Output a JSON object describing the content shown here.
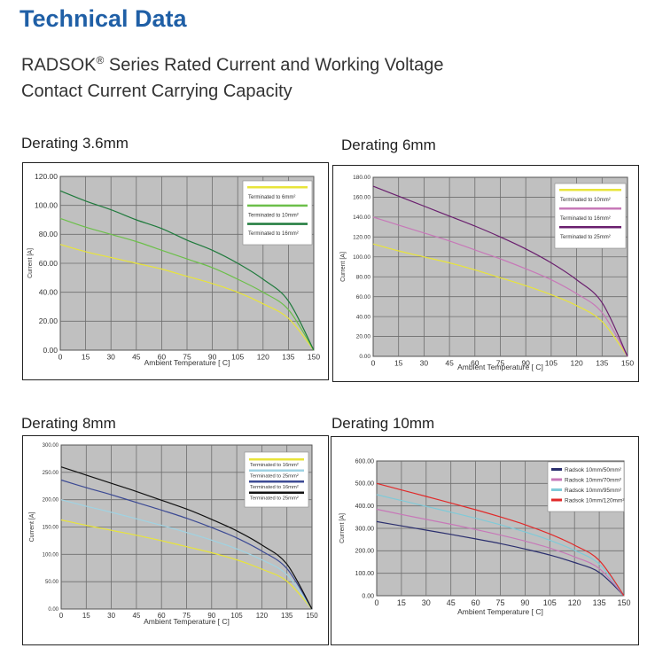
{
  "header": {
    "title": "Technical Data",
    "subtitle_line1": "RADSOK",
    "subtitle_reg": "®",
    "subtitle_line1_rest": " Series Rated Current and Working Voltage",
    "subtitle_line2": "Contact Current Carrying Capacity"
  },
  "chart_data": [
    {
      "type": "line",
      "title": "Derating 3.6mm",
      "xlabel": "Ambient Temperature [ C]",
      "ylabel": "Current [A]",
      "xlim": [
        0,
        150
      ],
      "ylim": [
        0,
        120
      ],
      "xticks": [
        "0",
        "15",
        "30",
        "45",
        "60",
        "75",
        "90",
        "105",
        "120",
        "135",
        "150"
      ],
      "yticks": [
        "0.00",
        "20.00",
        "40.00",
        "60.00",
        "80.00",
        "100.00",
        "120.00"
      ],
      "series": [
        {
          "name": "Terminated to 6mm²",
          "color": "#e8e43a",
          "x": [
            0,
            15,
            30,
            45,
            60,
            75,
            90,
            105,
            120,
            135,
            150
          ],
          "values": [
            73,
            68,
            64,
            60,
            56,
            51,
            46,
            40,
            32,
            22,
            0
          ]
        },
        {
          "name": "Terminated to 10mm²",
          "color": "#6cbf4a",
          "x": [
            0,
            15,
            30,
            45,
            60,
            75,
            90,
            105,
            120,
            135,
            150
          ],
          "values": [
            91,
            85,
            80,
            75,
            69,
            63,
            57,
            49,
            40,
            28,
            0
          ]
        },
        {
          "name": "Terminated to 16mm²",
          "color": "#1f7a3c",
          "x": [
            0,
            15,
            30,
            45,
            60,
            75,
            90,
            105,
            120,
            135,
            150
          ],
          "values": [
            110,
            103,
            97,
            90,
            84,
            76,
            69,
            60,
            49,
            34,
            0
          ]
        }
      ]
    },
    {
      "type": "line",
      "title": "Derating 6mm",
      "xlabel": "Ambient Temperature [ C]",
      "ylabel": "Current [A]",
      "xlim": [
        0,
        150
      ],
      "ylim": [
        0,
        180
      ],
      "xticks": [
        "0",
        "15",
        "30",
        "45",
        "60",
        "75",
        "90",
        "105",
        "120",
        "135",
        "150"
      ],
      "yticks": [
        "0.00",
        "20.00",
        "40.00",
        "60.00",
        "80.00",
        "100.00",
        "120.00",
        "140.00",
        "160.00",
        "180.00"
      ],
      "series": [
        {
          "name": "Terminated to 10mm²",
          "color": "#e8e43a",
          "x": [
            0,
            15,
            30,
            45,
            60,
            75,
            90,
            105,
            120,
            135,
            150
          ],
          "values": [
            113,
            106,
            100,
            94,
            87,
            79,
            71,
            62,
            51,
            35,
            0
          ]
        },
        {
          "name": "Terminated to 16mm²",
          "color": "#c778b8",
          "x": [
            0,
            15,
            30,
            45,
            60,
            75,
            90,
            105,
            120,
            135,
            150
          ],
          "values": [
            140,
            132,
            124,
            116,
            107,
            98,
            88,
            77,
            63,
            44,
            0
          ]
        },
        {
          "name": "Terminated to 25mm²",
          "color": "#6a1f6e",
          "x": [
            0,
            15,
            30,
            45,
            60,
            75,
            90,
            105,
            120,
            135,
            150
          ],
          "values": [
            171,
            161,
            151,
            141,
            131,
            120,
            108,
            94,
            77,
            54,
            0
          ]
        }
      ]
    },
    {
      "type": "line",
      "title": "Derating 8mm",
      "xlabel": "Ambient Temperature [ C]",
      "ylabel": "Current [A]",
      "xlim": [
        0,
        150
      ],
      "ylim": [
        0,
        300
      ],
      "xticks": [
        "0",
        "15",
        "30",
        "45",
        "60",
        "75",
        "90",
        "105",
        "120",
        "135",
        "150"
      ],
      "yticks": [
        "0.00",
        "50.00",
        "100.00",
        "150.00",
        "200.00",
        "250.00",
        "300.00"
      ],
      "series": [
        {
          "name": "Terminated to 16mm²",
          "color": "#e8e43a",
          "x": [
            0,
            15,
            30,
            45,
            60,
            75,
            90,
            105,
            120,
            135,
            150
          ],
          "values": [
            163,
            153,
            144,
            135,
            125,
            114,
            103,
            90,
            73,
            51,
            0
          ]
        },
        {
          "name": "Terminated to 25mm²",
          "color": "#9fd3e3",
          "x": [
            0,
            15,
            30,
            45,
            60,
            75,
            90,
            105,
            120,
            135,
            150
          ],
          "values": [
            200,
            188,
            177,
            165,
            153,
            140,
            126,
            110,
            90,
            63,
            0
          ]
        },
        {
          "name": "Terminated to 16mm²",
          "color": "#3c4a94",
          "x": [
            0,
            15,
            30,
            45,
            60,
            75,
            90,
            105,
            120,
            135,
            150
          ],
          "values": [
            236,
            222,
            209,
            195,
            181,
            166,
            149,
            130,
            106,
            74,
            0
          ]
        },
        {
          "name": "Terminated to 25mm²",
          "color": "#111111",
          "x": [
            0,
            15,
            30,
            45,
            60,
            75,
            90,
            105,
            120,
            135,
            150
          ],
          "values": [
            260,
            245,
            230,
            215,
            199,
            183,
            164,
            143,
            117,
            82,
            0
          ]
        }
      ]
    },
    {
      "type": "line",
      "title": "Derating 10mm",
      "xlabel": "Ambient Temperature [ C]",
      "ylabel": "Current [A]",
      "xlim": [
        0,
        150
      ],
      "ylim": [
        0,
        600
      ],
      "xticks": [
        "0",
        "15",
        "30",
        "45",
        "60",
        "75",
        "90",
        "105",
        "120",
        "135",
        "150"
      ],
      "yticks": [
        "0.00",
        "100.00",
        "200.00",
        "300.00",
        "400.00",
        "500.00",
        "600.00"
      ],
      "series": [
        {
          "name": "Radsok 10mm/50mm²",
          "color": "#2b2f6e",
          "x": [
            0,
            15,
            30,
            45,
            60,
            75,
            90,
            105,
            120,
            135,
            150
          ],
          "values": [
            330,
            311,
            292,
            273,
            253,
            232,
            208,
            181,
            148,
            104,
            0
          ]
        },
        {
          "name": "Radsok 10mm/70mm²",
          "color": "#c778b8",
          "x": [
            0,
            15,
            30,
            45,
            60,
            75,
            90,
            105,
            120,
            135,
            150
          ],
          "values": [
            385,
            362,
            340,
            318,
            295,
            270,
            243,
            212,
            173,
            121,
            0
          ]
        },
        {
          "name": "Radsok 10mm/95mm²",
          "color": "#7fcad8",
          "x": [
            0,
            15,
            30,
            45,
            60,
            75,
            90,
            105,
            120,
            135,
            150
          ],
          "values": [
            450,
            424,
            398,
            372,
            345,
            316,
            284,
            247,
            202,
            141,
            0
          ]
        },
        {
          "name": "Radsok 10mm/120mm²",
          "color": "#e02a2a",
          "x": [
            0,
            15,
            30,
            45,
            60,
            75,
            90,
            105,
            120,
            135,
            150
          ],
          "values": [
            500,
            471,
            442,
            413,
            383,
            351,
            316,
            275,
            225,
            157,
            0
          ]
        }
      ]
    }
  ]
}
